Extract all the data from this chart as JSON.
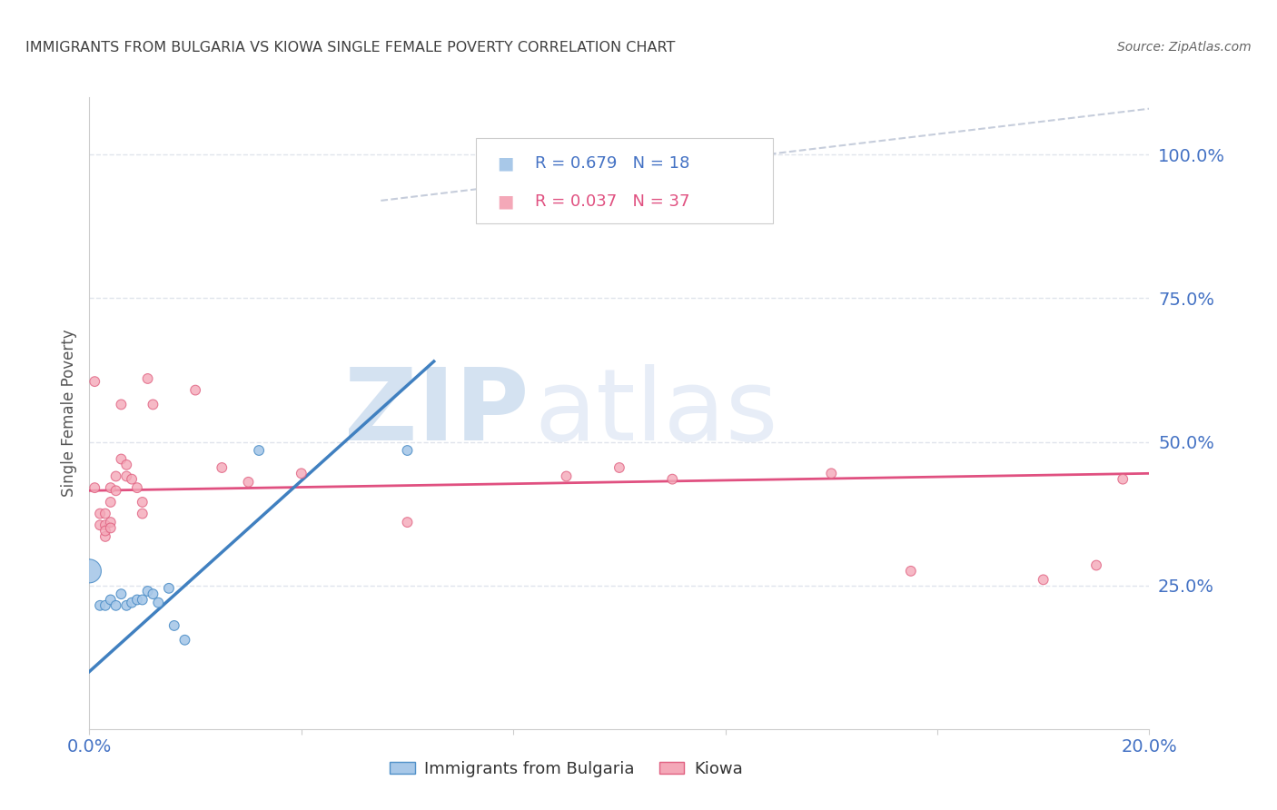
{
  "title": "IMMIGRANTS FROM BULGARIA VS KIOWA SINGLE FEMALE POVERTY CORRELATION CHART",
  "source": "Source: ZipAtlas.com",
  "ylabel": "Single Female Poverty",
  "ytick_labels": [
    "100.0%",
    "75.0%",
    "50.0%",
    "25.0%"
  ],
  "ytick_values": [
    1.0,
    0.75,
    0.5,
    0.25
  ],
  "xlim": [
    0.0,
    0.2
  ],
  "ylim": [
    0.0,
    1.1
  ],
  "legend_r_blue": "R = 0.679",
  "legend_n_blue": "N = 18",
  "legend_r_pink": "R = 0.037",
  "legend_n_pink": "N = 37",
  "watermark_zip": "ZIP",
  "watermark_atlas": "atlas",
  "blue_color": "#a8c8e8",
  "pink_color": "#f4a8b8",
  "blue_edge_color": "#5090c8",
  "pink_edge_color": "#e06080",
  "blue_line_color": "#4080c0",
  "pink_line_color": "#e05080",
  "diag_line_color": "#c0c8d8",
  "background_color": "#ffffff",
  "grid_color": "#e0e4ec",
  "title_color": "#404040",
  "axis_label_color": "#4472c4",
  "blue_scatter": [
    [
      0.0,
      0.275
    ],
    [
      0.002,
      0.215
    ],
    [
      0.003,
      0.215
    ],
    [
      0.004,
      0.225
    ],
    [
      0.005,
      0.215
    ],
    [
      0.006,
      0.235
    ],
    [
      0.007,
      0.215
    ],
    [
      0.008,
      0.22
    ],
    [
      0.009,
      0.225
    ],
    [
      0.01,
      0.225
    ],
    [
      0.011,
      0.24
    ],
    [
      0.012,
      0.235
    ],
    [
      0.013,
      0.22
    ],
    [
      0.015,
      0.245
    ],
    [
      0.016,
      0.18
    ],
    [
      0.018,
      0.155
    ],
    [
      0.032,
      0.485
    ],
    [
      0.06,
      0.485
    ]
  ],
  "blue_sizes": [
    350,
    60,
    60,
    60,
    60,
    60,
    60,
    60,
    60,
    60,
    60,
    60,
    60,
    60,
    60,
    60,
    60,
    60
  ],
  "pink_scatter": [
    [
      0.001,
      0.605
    ],
    [
      0.002,
      0.355
    ],
    [
      0.002,
      0.375
    ],
    [
      0.003,
      0.375
    ],
    [
      0.003,
      0.355
    ],
    [
      0.003,
      0.335
    ],
    [
      0.003,
      0.345
    ],
    [
      0.004,
      0.42
    ],
    [
      0.004,
      0.395
    ],
    [
      0.004,
      0.36
    ],
    [
      0.004,
      0.35
    ],
    [
      0.005,
      0.44
    ],
    [
      0.005,
      0.415
    ],
    [
      0.006,
      0.565
    ],
    [
      0.006,
      0.47
    ],
    [
      0.007,
      0.46
    ],
    [
      0.007,
      0.44
    ],
    [
      0.008,
      0.435
    ],
    [
      0.009,
      0.42
    ],
    [
      0.01,
      0.375
    ],
    [
      0.01,
      0.395
    ],
    [
      0.011,
      0.61
    ],
    [
      0.012,
      0.565
    ],
    [
      0.02,
      0.59
    ],
    [
      0.025,
      0.455
    ],
    [
      0.03,
      0.43
    ],
    [
      0.04,
      0.445
    ],
    [
      0.06,
      0.36
    ],
    [
      0.09,
      0.44
    ],
    [
      0.1,
      0.455
    ],
    [
      0.11,
      0.435
    ],
    [
      0.14,
      0.445
    ],
    [
      0.155,
      0.275
    ],
    [
      0.18,
      0.26
    ],
    [
      0.19,
      0.285
    ],
    [
      0.195,
      0.435
    ],
    [
      0.001,
      0.42
    ]
  ],
  "pink_sizes": [
    60,
    60,
    60,
    60,
    60,
    60,
    60,
    60,
    60,
    60,
    60,
    60,
    60,
    60,
    60,
    60,
    60,
    60,
    60,
    60,
    60,
    60,
    60,
    60,
    60,
    60,
    60,
    60,
    60,
    60,
    60,
    60,
    60,
    60,
    60,
    60,
    60
  ],
  "blue_trend_x": [
    0.0,
    0.065
  ],
  "blue_trend_y": [
    0.1,
    0.64
  ],
  "pink_trend_x": [
    0.0,
    0.2
  ],
  "pink_trend_y": [
    0.415,
    0.445
  ],
  "diag_trend_x": [
    0.055,
    0.2
  ],
  "diag_trend_y": [
    0.92,
    1.08
  ]
}
